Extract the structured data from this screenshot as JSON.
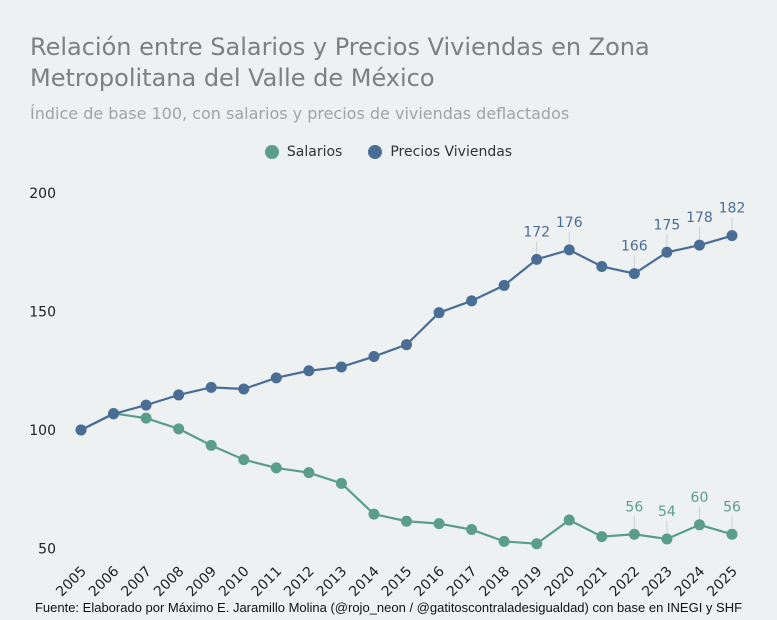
{
  "chart_data": {
    "type": "line",
    "title": "Relación entre Salarios y Precios Viviendas en Zona Metropolitana del Valle de México",
    "subtitle": "Índice de base 100, con salarios y precios de viviendas deflactados",
    "x": [
      "2005",
      "2006",
      "2007",
      "2008",
      "2009",
      "2010",
      "2011",
      "2012",
      "2013",
      "2014",
      "2015",
      "2016",
      "2017",
      "2018",
      "2019",
      "2020",
      "2021",
      "2022",
      "2023",
      "2024",
      "2025"
    ],
    "yticks": [
      50,
      100,
      150,
      200
    ],
    "ylim": [
      45,
      205
    ],
    "grid": false,
    "legend_placement": "top-center",
    "series": [
      {
        "name": "Salarios",
        "color": "#5a9e8a",
        "values": [
          100,
          107,
          105,
          100.5,
          93.5,
          87.5,
          84,
          82,
          77.5,
          64.5,
          61.5,
          60.5,
          58,
          53,
          52,
          62,
          55,
          56,
          54,
          60,
          56
        ],
        "labels": [
          null,
          null,
          null,
          null,
          null,
          null,
          null,
          null,
          null,
          null,
          null,
          null,
          null,
          null,
          null,
          null,
          null,
          "56",
          "54",
          "60",
          "56"
        ]
      },
      {
        "name": "Precios Viviendas",
        "color": "#4a6d96",
        "values": [
          100,
          106.8,
          110.5,
          114.8,
          118,
          117.3,
          122,
          125,
          126.6,
          131,
          136,
          149.5,
          154.5,
          161,
          172,
          176,
          169,
          166,
          175,
          178,
          182
        ],
        "labels": [
          null,
          null,
          null,
          null,
          null,
          null,
          null,
          null,
          null,
          null,
          null,
          null,
          null,
          null,
          "172",
          "176",
          null,
          "166",
          "175",
          "178",
          "182"
        ]
      }
    ]
  },
  "source": "Fuente: Elaborado por Máximo E. Jaramillo Molina (@rojo_neon / @gatitoscontraladesigualdad) con base en INEGI y SHF"
}
